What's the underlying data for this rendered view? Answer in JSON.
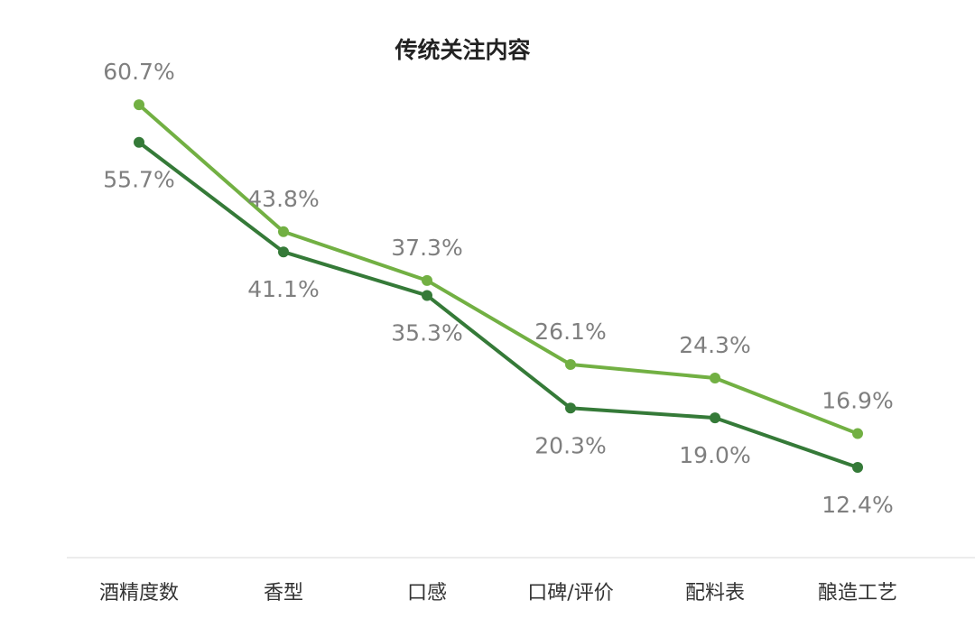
{
  "chart_data": {
    "type": "line",
    "title": "传统关注内容",
    "xlabel": "",
    "ylabel": "",
    "categories": [
      "酒精度数",
      "香型",
      "口感",
      "口碑/评价",
      "配料表",
      "酿造工艺"
    ],
    "series": [
      {
        "values": [
          60.7,
          43.8,
          37.3,
          26.1,
          24.3,
          16.9
        ],
        "labels": [
          "60.7%",
          "43.8%",
          "37.3%",
          "26.1%",
          "24.3%",
          "16.9%"
        ],
        "color": "#72b043",
        "label_position": "above"
      },
      {
        "values": [
          55.7,
          41.1,
          35.3,
          20.3,
          19.0,
          12.4
        ],
        "labels": [
          "55.7%",
          "41.1%",
          "35.3%",
          "20.3%",
          "19.0%",
          "12.4%"
        ],
        "color": "#357a38",
        "label_position": "below"
      }
    ],
    "ylim": [
      0,
      65
    ],
    "grid": false,
    "legend": "none",
    "axis_color": "#e6e6e6"
  }
}
